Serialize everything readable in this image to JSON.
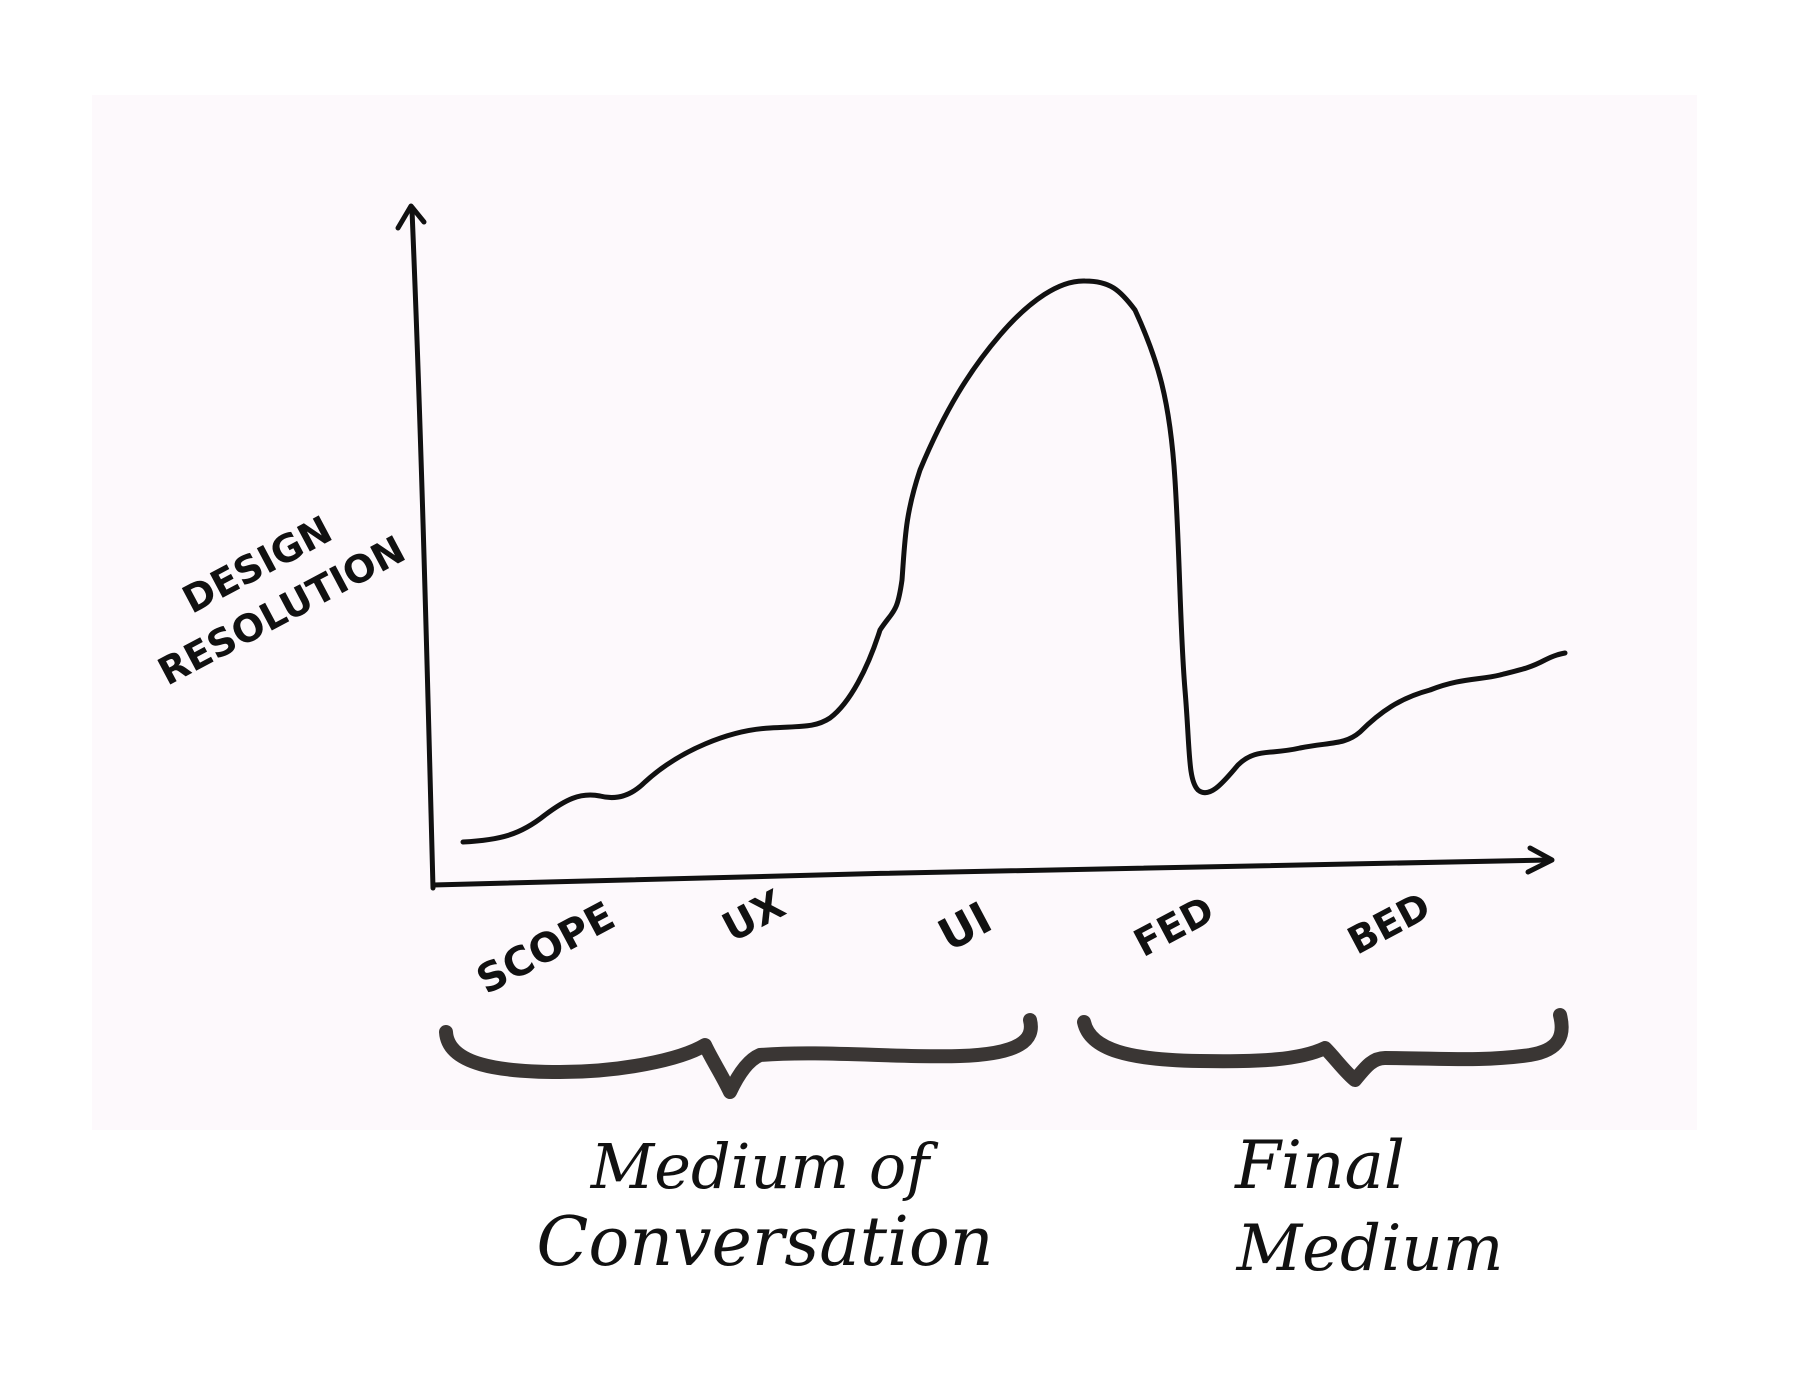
{
  "diagram": {
    "y_axis_label": {
      "line1": "DESIGN",
      "line2": "RESOLUTION"
    },
    "x_stages": [
      "SCOPE",
      "UX",
      "UI",
      "FED",
      "BED"
    ],
    "groups": [
      {
        "line1": "Medium of",
        "line2": "Conversation",
        "covers": [
          "SCOPE",
          "UX",
          "UI"
        ]
      },
      {
        "line1": "Final",
        "line2": "Medium",
        "covers": [
          "FED",
          "BED"
        ]
      }
    ],
    "curve_shape": "gradual rise through SCOPE and UX, steep peak between UI and FED, sharp drop at FED, gentle rise through BED",
    "colors": {
      "ink": "#111111",
      "background_panel": "#fdf9fc",
      "page": "#ffffff",
      "brace": "#3a3634"
    }
  }
}
